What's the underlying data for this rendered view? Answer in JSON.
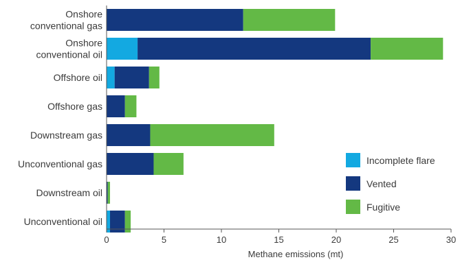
{
  "chart_data": {
    "type": "bar",
    "orientation": "horizontal",
    "stacked": true,
    "xlabel": "Methane emissions (mt)",
    "xlim": [
      0,
      30
    ],
    "xticks": [
      0,
      5,
      10,
      15,
      20,
      25,
      30
    ],
    "grid": false,
    "legend_position": "right",
    "categories": [
      [
        "Onshore",
        "conventional gas"
      ],
      [
        "Onshore",
        "conventional oil"
      ],
      [
        "Offshore oil"
      ],
      [
        "Offshore gas"
      ],
      [
        "Downstream gas"
      ],
      [
        "Unconventional gas"
      ],
      [
        "Downstream oil"
      ],
      [
        "Unconventional oil"
      ]
    ],
    "series": [
      {
        "name": "Incomplete flare",
        "color": "#13A9E1",
        "values": [
          0,
          2.7,
          0.7,
          0,
          0,
          0,
          0,
          0.3
        ]
      },
      {
        "name": "Vented",
        "color": "#14387F",
        "values": [
          11.9,
          20.3,
          3.0,
          1.6,
          3.8,
          4.1,
          0.1,
          1.3
        ]
      },
      {
        "name": "Fugitive",
        "color": "#63B946",
        "values": [
          8.0,
          6.3,
          0.9,
          1.0,
          10.8,
          2.6,
          0.2,
          0.5
        ]
      }
    ]
  }
}
